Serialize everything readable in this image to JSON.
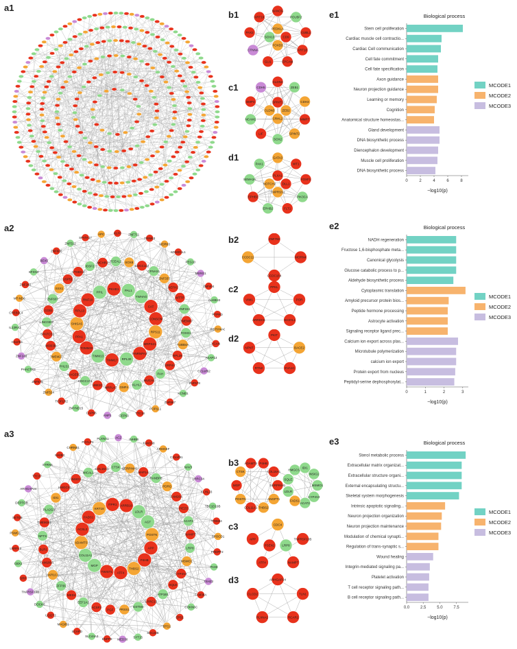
{
  "colors": {
    "green": "#8fd98c",
    "orange": "#f4a534",
    "red": "#e8321c",
    "purple": "#c98ad6",
    "edge": "#999999",
    "teal": "#72d2c4",
    "barOrange": "#f7b36d",
    "lavender": "#c7bde0"
  },
  "labels": {
    "a1": "a1",
    "a2": "a2",
    "a3": "a3",
    "b1": "b1",
    "c1": "c1",
    "d1": "d1",
    "b2": "b2",
    "c2": "c2",
    "d2": "d2",
    "b3": "b3",
    "c3": "c3",
    "d3": "d3",
    "e1": "e1",
    "e2": "e2",
    "e3": "e3"
  },
  "clusters": {
    "b1": {
      "nodes": [
        {
          "t": "CD9",
          "c": "red"
        },
        {
          "t": "FOXD3",
          "c": "orange"
        },
        {
          "t": "SOX13",
          "c": "green"
        },
        {
          "t": "PEDKLA",
          "c": "orange"
        },
        {
          "t": "NANOG",
          "c": "red"
        },
        {
          "t": "POU5F2",
          "c": "green"
        },
        {
          "t": "CUBL1",
          "c": "red"
        },
        {
          "t": "KRT18",
          "c": "red"
        },
        {
          "t": "EPCAM",
          "c": "red"
        },
        {
          "t": "GLI1",
          "c": "red"
        },
        {
          "t": "CTNNA",
          "c": "purple"
        },
        {
          "t": "PAX2",
          "c": "red"
        },
        {
          "t": "KRT19",
          "c": "red"
        }
      ]
    },
    "c1": {
      "nodes": [
        {
          "t": "ZEB2",
          "c": "orange"
        },
        {
          "t": "CRHL2",
          "c": "orange"
        },
        {
          "t": "CLDN3",
          "c": "orange"
        },
        {
          "t": "SPINT1",
          "c": "red"
        },
        {
          "t": "CLDN4",
          "c": "red"
        },
        {
          "t": "ZEB1",
          "c": "green"
        },
        {
          "t": "CDH3",
          "c": "orange"
        },
        {
          "t": "MMP7",
          "c": "red"
        },
        {
          "t": "SPINT2",
          "c": "orange"
        },
        {
          "t": "SOX2",
          "c": "green"
        },
        {
          "t": "LIF",
          "c": "red"
        },
        {
          "t": "NCAM1",
          "c": "green"
        },
        {
          "t": "BMP4",
          "c": "red"
        },
        {
          "t": "CDH5",
          "c": "purple"
        }
      ]
    },
    "d1": {
      "nodes": [
        {
          "t": "DLL1",
          "c": "red"
        },
        {
          "t": "TMPRSS2",
          "c": "orange"
        },
        {
          "t": "NOTCH2",
          "c": "orange"
        },
        {
          "t": "PLXA1",
          "c": "red"
        },
        {
          "t": "GATA3",
          "c": "orange"
        },
        {
          "t": "WT1",
          "c": "red"
        },
        {
          "t": "FOXF1",
          "c": "red"
        },
        {
          "t": "PIK3CA",
          "c": "green"
        },
        {
          "t": "FLT1",
          "c": "red"
        },
        {
          "t": "EPHB2",
          "c": "green"
        },
        {
          "t": "EPHB3",
          "c": "red"
        },
        {
          "t": "SEMA3A",
          "c": "green"
        },
        {
          "t": "PAK1",
          "c": "green"
        }
      ]
    },
    "b2": {
      "nodes": [
        {
          "t": "ZNF793",
          "c": "red"
        },
        {
          "t": "MORN4",
          "c": "red"
        },
        {
          "t": "CCDC154",
          "c": "red"
        },
        {
          "t": "CCDC11",
          "c": "orange"
        }
      ]
    },
    "c2": {
      "nodes": [
        {
          "t": "PPKL",
          "c": "red"
        },
        {
          "t": "POR",
          "c": "red"
        },
        {
          "t": "SH3YL1",
          "c": "red"
        },
        {
          "t": "ARRDC6",
          "c": "red"
        },
        {
          "t": "VIM1",
          "c": "red"
        }
      ]
    },
    "d2": {
      "nodes": [
        {
          "t": "PKIT",
          "c": "red"
        },
        {
          "t": "BACE2",
          "c": "orange"
        },
        {
          "t": "EVA1C",
          "c": "red"
        },
        {
          "t": "RTN2",
          "c": "red"
        },
        {
          "t": "NPNT",
          "c": "red"
        }
      ]
    },
    "b3": {
      "nodes": [
        {
          "t": "SERPINH1",
          "c": "red"
        },
        {
          "t": "ANGPT1",
          "c": "orange"
        },
        {
          "t": "THBS2",
          "c": "orange"
        },
        {
          "t": "COL11A1",
          "c": "red"
        },
        {
          "t": "POSTN",
          "c": "orange"
        },
        {
          "t": "MGP",
          "c": "red"
        },
        {
          "t": "CTSK",
          "c": "orange"
        },
        {
          "t": "ADAMTS",
          "c": "red"
        },
        {
          "t": "P4HB",
          "c": "red"
        },
        {
          "t": "COL16A1",
          "c": "red"
        },
        {
          "t": "MSMO1",
          "c": "green"
        },
        {
          "t": "CYP4V2",
          "c": "green"
        },
        {
          "t": "ACAT2",
          "c": "green"
        },
        {
          "t": "FADS1",
          "c": "orange"
        },
        {
          "t": "LDLR",
          "c": "green"
        },
        {
          "t": "SQLE",
          "c": "green"
        },
        {
          "t": "HMGCS1",
          "c": "green"
        },
        {
          "t": "IDI1",
          "c": "green"
        },
        {
          "t": "INSIG1",
          "c": "green"
        }
      ]
    },
    "c3": {
      "nodes": [
        {
          "t": "LRP8",
          "c": "green"
        },
        {
          "t": "PSEN1",
          "c": "red"
        },
        {
          "t": "CDC4",
          "c": "orange"
        },
        {
          "t": "TNFRSF10B",
          "c": "red"
        },
        {
          "t": "NAMPT",
          "c": "red"
        },
        {
          "t": "ATF4",
          "c": "red"
        },
        {
          "t": "APP",
          "c": "red"
        }
      ]
    },
    "d3": {
      "nodes": [
        {
          "t": "ARHGAP24",
          "c": "red"
        },
        {
          "t": "TLN1",
          "c": "red"
        },
        {
          "t": "RCAR1",
          "c": "red"
        },
        {
          "t": "PLXNA1",
          "c": "red"
        },
        {
          "t": "CLCD2",
          "c": "red"
        }
      ]
    }
  },
  "a2": {
    "outer": [
      "ZNF711",
      "TRIM63",
      "WDR63",
      "MSMO1L1",
      "PEG10",
      "MERG1",
      "ZNF404",
      "ALKBH3",
      "PTPRD",
      "HISTIH4AC",
      "VCAN",
      "AKAP13",
      "C21orf62",
      "ZNF578",
      "KCND1",
      "ZNF667",
      "POP1L1",
      "TTC18",
      "CEP63",
      "ANP1",
      "CAPN6",
      "ZMYND15",
      "TIGFLR2",
      "ZNF524",
      "ZNF675",
      "PHACTR3",
      "ZNF248",
      "C5orf64",
      "IL13RA2",
      "CREB3L4",
      "MT-ND6",
      "ZNF280",
      "SFXN3",
      "BEX5",
      "ZNF680",
      "ZNF512",
      "SPATA17",
      "APC",
      "KLF8"
    ],
    "inner": [
      "CDCC112",
      "CFNAX1",
      "ZNF337",
      "NEFH2",
      "MTTP",
      "ZNF224",
      "TMEM97",
      "FOXG1",
      "TUBB4A",
      "RPL28",
      "ERP44",
      "PAH",
      "MUCAL",
      "KLHL1",
      "GMF4",
      "MRPL47",
      "UBE2C",
      "CDCC174",
      "MAGEB1",
      "PHLS1",
      "TMEM27",
      "MOB3B",
      "SPATCS1",
      "LINC0307",
      "CCB1",
      "ZNF607",
      "SSX1",
      "USP51",
      "YTHDC2",
      "IDSF2",
      "MCHR2",
      "TCEAL2",
      "SOX8"
    ],
    "core": [
      "YWHAG",
      "CAT",
      "CONSOM",
      "RPS11",
      "MRPS21",
      "HNRNPA3",
      "RPL30",
      "TIMM17",
      "TIMM13",
      "TOMM20",
      "PPA1",
      "SHISAS",
      "RPL13",
      "RNF10",
      "PPIL",
      "PKHD1",
      "PAL1"
    ]
  },
  "a3": {
    "outer": [
      "INHBB",
      "FAM168",
      "ARHGEF",
      "C21orf91",
      "NAV3",
      "LRRC34",
      "KLHL23",
      "TBC1D19B",
      "TRIM34",
      "SPOCD1",
      "PRDPF2",
      "PAX8",
      "TSHZ2",
      "FAM38A",
      "COKN6C",
      "EPS1",
      "BTG1",
      "SEC23B",
      "SYT15",
      "MED30",
      "ENPP6",
      "SLC44A3",
      "SCAPD",
      "MAGIB1",
      "UGGT2",
      "DOCK6",
      "TNFRSF10B",
      "SRP",
      "CBX1",
      "LRRFL2",
      "PSMG1",
      "SETD9",
      "DEPTOR",
      "ARHGAP24",
      "TTC37",
      "STRN6",
      "SH2B3",
      "CHRNB1",
      "PXYLP1",
      "PLXNA1",
      "ACZ"
    ],
    "inner": [
      "MAP1A",
      "RANBP8",
      "PDRG",
      "FAM20A",
      "PIEZO",
      "ACAT2",
      "NAMPT",
      "LRP8",
      "MSMO1",
      "CYP4V2",
      "SQLE",
      "ATP1B1",
      "LRRC15",
      "GSTM4",
      "PRSS1",
      "PGF",
      "ACSF2",
      "EEF1A2",
      "MED4",
      "ZFP36",
      "AKR1C1",
      "FAM180A",
      "BLR1",
      "NPTS",
      "TMEM241",
      "PLA2G3",
      "IDI1",
      "HMGCS1",
      "INSIG1",
      "MICAL1",
      "COL16A1",
      "CTSK",
      "SERPINH1"
    ],
    "core": [
      "LDLR",
      "AGT",
      "POSTN",
      "APP",
      "P4HB",
      "THBS2",
      "ATF4",
      "TWIST1",
      "MGP",
      "COL11A1",
      "ADAMTS",
      "ACSL3",
      "FADS1",
      "KRT18",
      "ITPR1",
      "ARRB10"
    ]
  },
  "charts": {
    "e1": {
      "type": "bar",
      "title": "Biological process",
      "xlabel": "−log10(p)",
      "xlim": [
        0,
        9
      ],
      "xticks": [
        0,
        2,
        4,
        6,
        8
      ],
      "categories": [
        "Stem cell proliferation",
        "Cardiac muscle cell contractio...",
        "Cardiac Cell communication",
        "Cell fate commitment",
        "Cell fate specification",
        "Axon guidance",
        "Neuron projection guidance",
        "Learning or memory",
        "Cognition",
        "Anatomical structure homeostas...",
        "Gland development",
        "DNA biosynthetic process",
        "Diencephalon development",
        "Muscle cell proliferation",
        "DNA biosynthetic process"
      ],
      "values": [
        8.2,
        5.1,
        5.0,
        4.6,
        4.5,
        4.6,
        4.6,
        4.4,
        4.1,
        4.0,
        4.8,
        4.8,
        4.6,
        4.5,
        4.2
      ],
      "groups": [
        1,
        1,
        1,
        1,
        1,
        2,
        2,
        2,
        2,
        2,
        3,
        3,
        3,
        3,
        3
      ],
      "legend": [
        "MCODE1",
        "MCODE2",
        "MCODE3"
      ]
    },
    "e2": {
      "type": "bar",
      "title": "Biological process",
      "xlabel": "−log10(p)",
      "xlim": [
        0,
        3.3
      ],
      "xticks": [
        0,
        1,
        2,
        3
      ],
      "categories": [
        "NADH regeneration",
        "Fructose 1,6-bisphosphate meta...",
        "Canonical glycolysis",
        "Glucose catabolic process to p...",
        "Aldehyde biosynthetic process",
        "Cytoplasmic translation",
        "Amyloid precursor protein bios...",
        "Peptide hormone processing",
        "Astrocyte activation",
        "Signaling receptor ligand prec...",
        "Calcium ion export across plas...",
        "Microtubule polymerization",
        "calcium ion export",
        "Protein export from nucleus",
        "Peptidyl-serine dephosphorylat..."
      ],
      "values": [
        2.65,
        2.65,
        2.65,
        2.65,
        2.5,
        3.15,
        2.25,
        2.2,
        2.2,
        2.2,
        2.75,
        2.65,
        2.65,
        2.6,
        2.55
      ],
      "groups": [
        1,
        1,
        1,
        1,
        1,
        2,
        2,
        2,
        2,
        2,
        3,
        3,
        3,
        3,
        3
      ],
      "legend": [
        "MCODE1",
        "MCODE2",
        "MCODE3"
      ]
    },
    "e3": {
      "type": "bar",
      "title": "Biological process",
      "xlabel": "−log10(p)",
      "xlim": [
        0,
        9.3
      ],
      "xticks": [
        0.0,
        2.5,
        5.0,
        7.5
      ],
      "xtick_labels": [
        "0.0",
        "2.5",
        "5.0",
        "7.5"
      ],
      "categories": [
        "Sterol metabolic process",
        "Extracellular matrix organizat...",
        "Extracellular structure organi...",
        "External encapsulating structu...",
        "Skeletal system morphogenesis",
        "Intrinsic apoptotic signaling...",
        "Neuron projection organization",
        "Neuron projection maintenance",
        "Modulation of chemical synapti...",
        "Regulation of trans-synaptic s...",
        "Wound healing",
        "Integrin-mediated signaling pa...",
        "Platelet activation",
        "T cell receptor signaling path...",
        "B cell receptor signaling path..."
      ],
      "values": [
        8.9,
        8.3,
        8.3,
        8.3,
        7.9,
        5.8,
        5.3,
        5.2,
        4.8,
        4.8,
        4.0,
        3.5,
        3.4,
        3.3,
        3.3
      ],
      "groups": [
        1,
        1,
        1,
        1,
        1,
        2,
        2,
        2,
        2,
        2,
        3,
        3,
        3,
        3,
        3
      ],
      "legend": [
        "MCODE1",
        "MCODE2",
        "MCODE3"
      ]
    }
  }
}
